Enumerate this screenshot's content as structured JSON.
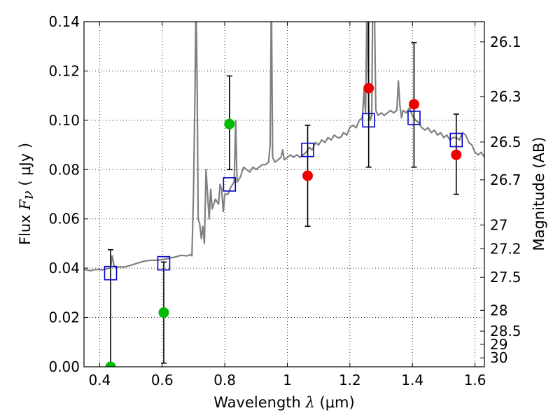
{
  "chart_data": {
    "type": "scatter",
    "xlabel": "Wavelength  λ (μm)",
    "xlabel_parts": {
      "text": "Wavelength  ",
      "symbol": "λ",
      "unit": " (μm)"
    },
    "ylabel": "Flux  Fν  ( μJy )",
    "ylabel_parts": {
      "text": "Flux  ",
      "symbol": "F",
      "sub": "ν",
      "unit": "  ( μJy )"
    },
    "y2label": "Magnitude (AB)",
    "xlim": [
      0.35,
      1.63
    ],
    "ylim": [
      0.0,
      0.14
    ],
    "grid": true,
    "x_ticks": [
      {
        "value": 0.4,
        "label": "0.4"
      },
      {
        "value": 0.6,
        "label": "0.6"
      },
      {
        "value": 0.8,
        "label": "0.8"
      },
      {
        "value": 1.0,
        "label": "1"
      },
      {
        "value": 1.2,
        "label": "1.2"
      },
      {
        "value": 1.4,
        "label": "1.4"
      },
      {
        "value": 1.6,
        "label": "1.6"
      }
    ],
    "y_ticks": [
      {
        "value": 0.0,
        "label": "0.00"
      },
      {
        "value": 0.02,
        "label": "0.02"
      },
      {
        "value": 0.04,
        "label": "0.04"
      },
      {
        "value": 0.06,
        "label": "0.06"
      },
      {
        "value": 0.08,
        "label": "0.08"
      },
      {
        "value": 0.1,
        "label": "0.10"
      },
      {
        "value": 0.12,
        "label": "0.12"
      },
      {
        "value": 0.14,
        "label": "0.14"
      }
    ],
    "y2_ticks": [
      {
        "mag": 26.1,
        "label": "26.1"
      },
      {
        "mag": 26.3,
        "label": "26.3"
      },
      {
        "mag": 26.5,
        "label": "26.5"
      },
      {
        "mag": 26.7,
        "label": "26.7"
      },
      {
        "mag": 27.0,
        "label": "27"
      },
      {
        "mag": 27.2,
        "label": "27.2"
      },
      {
        "mag": 27.5,
        "label": "27.5"
      },
      {
        "mag": 28.0,
        "label": "28"
      },
      {
        "mag": 28.5,
        "label": "28.5"
      },
      {
        "mag": 29.0,
        "label": "29"
      },
      {
        "mag": 30.0,
        "label": "30"
      }
    ],
    "spectrum": {
      "color": "#808080",
      "points": [
        [
          0.35,
          0.0395
        ],
        [
          0.37,
          0.039
        ],
        [
          0.39,
          0.0395
        ],
        [
          0.41,
          0.0393
        ],
        [
          0.425,
          0.0398
        ],
        [
          0.435,
          0.0402
        ],
        [
          0.44,
          0.045
        ],
        [
          0.443,
          0.043
        ],
        [
          0.447,
          0.0405
        ],
        [
          0.46,
          0.0405
        ],
        [
          0.48,
          0.0405
        ],
        [
          0.5,
          0.0412
        ],
        [
          0.52,
          0.042
        ],
        [
          0.54,
          0.0428
        ],
        [
          0.56,
          0.0432
        ],
        [
          0.58,
          0.0432
        ],
        [
          0.6,
          0.0435
        ],
        [
          0.62,
          0.044
        ],
        [
          0.64,
          0.0445
        ],
        [
          0.66,
          0.0452
        ],
        [
          0.68,
          0.045
        ],
        [
          0.69,
          0.0455
        ],
        [
          0.695,
          0.045
        ],
        [
          0.7,
          0.07
        ],
        [
          0.705,
          0.112
        ],
        [
          0.708,
          0.15
        ],
        [
          0.712,
          0.11
        ],
        [
          0.715,
          0.06
        ],
        [
          0.72,
          0.058
        ],
        [
          0.725,
          0.052
        ],
        [
          0.73,
          0.057
        ],
        [
          0.735,
          0.05
        ],
        [
          0.74,
          0.08
        ],
        [
          0.745,
          0.07
        ],
        [
          0.75,
          0.06
        ],
        [
          0.755,
          0.072
        ],
        [
          0.76,
          0.064
        ],
        [
          0.77,
          0.068
        ],
        [
          0.78,
          0.066
        ],
        [
          0.785,
          0.074
        ],
        [
          0.79,
          0.072
        ],
        [
          0.795,
          0.063
        ],
        [
          0.8,
          0.07
        ],
        [
          0.81,
          0.07
        ],
        [
          0.82,
          0.073
        ],
        [
          0.83,
          0.075
        ],
        [
          0.835,
          0.1
        ],
        [
          0.838,
          0.08
        ],
        [
          0.84,
          0.075
        ],
        [
          0.85,
          0.077
        ],
        [
          0.86,
          0.081
        ],
        [
          0.87,
          0.08
        ],
        [
          0.88,
          0.079
        ],
        [
          0.89,
          0.081
        ],
        [
          0.9,
          0.08
        ],
        [
          0.91,
          0.081
        ],
        [
          0.92,
          0.082
        ],
        [
          0.93,
          0.082
        ],
        [
          0.94,
          0.083
        ],
        [
          0.945,
          0.09
        ],
        [
          0.949,
          0.15
        ],
        [
          0.953,
          0.085
        ],
        [
          0.96,
          0.083
        ],
        [
          0.97,
          0.084
        ],
        [
          0.98,
          0.085
        ],
        [
          0.985,
          0.088
        ],
        [
          0.99,
          0.084
        ],
        [
          1.0,
          0.085
        ],
        [
          1.01,
          0.086
        ],
        [
          1.02,
          0.085
        ],
        [
          1.03,
          0.086
        ],
        [
          1.04,
          0.085
        ],
        [
          1.05,
          0.086
        ],
        [
          1.06,
          0.087
        ],
        [
          1.07,
          0.089
        ],
        [
          1.08,
          0.088
        ],
        [
          1.09,
          0.091
        ],
        [
          1.1,
          0.09
        ],
        [
          1.11,
          0.092
        ],
        [
          1.12,
          0.091
        ],
        [
          1.13,
          0.093
        ],
        [
          1.14,
          0.092
        ],
        [
          1.15,
          0.094
        ],
        [
          1.16,
          0.093
        ],
        [
          1.17,
          0.093
        ],
        [
          1.18,
          0.095
        ],
        [
          1.19,
          0.094
        ],
        [
          1.2,
          0.097
        ],
        [
          1.21,
          0.098
        ],
        [
          1.22,
          0.097
        ],
        [
          1.23,
          0.1
        ],
        [
          1.24,
          0.101
        ],
        [
          1.245,
          0.112
        ],
        [
          1.25,
          0.103
        ],
        [
          1.255,
          0.15
        ],
        [
          1.26,
          0.105
        ],
        [
          1.265,
          0.1
        ],
        [
          1.27,
          0.102
        ],
        [
          1.273,
          0.15
        ],
        [
          1.278,
          0.15
        ],
        [
          1.283,
          0.104
        ],
        [
          1.29,
          0.102
        ],
        [
          1.3,
          0.103
        ],
        [
          1.31,
          0.102
        ],
        [
          1.32,
          0.103
        ],
        [
          1.33,
          0.104
        ],
        [
          1.34,
          0.103
        ],
        [
          1.35,
          0.104
        ],
        [
          1.355,
          0.116
        ],
        [
          1.36,
          0.106
        ],
        [
          1.365,
          0.101
        ],
        [
          1.37,
          0.104
        ],
        [
          1.38,
          0.103
        ],
        [
          1.39,
          0.105
        ],
        [
          1.4,
          0.102
        ],
        [
          1.41,
          0.1
        ],
        [
          1.42,
          0.099
        ],
        [
          1.43,
          0.097
        ],
        [
          1.44,
          0.096
        ],
        [
          1.45,
          0.097
        ],
        [
          1.46,
          0.095
        ],
        [
          1.47,
          0.096
        ],
        [
          1.48,
          0.094
        ],
        [
          1.49,
          0.095
        ],
        [
          1.5,
          0.093
        ],
        [
          1.51,
          0.094
        ],
        [
          1.52,
          0.092
        ],
        [
          1.53,
          0.093
        ],
        [
          1.54,
          0.093
        ],
        [
          1.55,
          0.092
        ],
        [
          1.56,
          0.095
        ],
        [
          1.57,
          0.094
        ],
        [
          1.58,
          0.091
        ],
        [
          1.59,
          0.09
        ],
        [
          1.6,
          0.087
        ],
        [
          1.61,
          0.086
        ],
        [
          1.62,
          0.087
        ],
        [
          1.63,
          0.085
        ]
      ]
    },
    "model_boxes": {
      "color": "#0000cc",
      "points": [
        {
          "x": 0.435,
          "y": 0.038
        },
        {
          "x": 0.605,
          "y": 0.042
        },
        {
          "x": 0.815,
          "y": 0.074
        },
        {
          "x": 1.065,
          "y": 0.088
        },
        {
          "x": 1.26,
          "y": 0.1
        },
        {
          "x": 1.405,
          "y": 0.101
        },
        {
          "x": 1.54,
          "y": 0.092
        }
      ]
    },
    "observed_green": {
      "color": "#00bb00",
      "points": [
        {
          "x": 0.435,
          "y": 0.0,
          "ylo": 0.0,
          "yhi": 0.0475
        },
        {
          "x": 0.605,
          "y": 0.022,
          "ylo": 0.0015,
          "yhi": 0.0425
        },
        {
          "x": 0.815,
          "y": 0.0985,
          "ylo": 0.08,
          "yhi": 0.118
        }
      ]
    },
    "observed_red": {
      "color": "#ee0000",
      "points": [
        {
          "x": 1.065,
          "y": 0.0775,
          "ylo": 0.057,
          "yhi": 0.098
        },
        {
          "x": 1.26,
          "y": 0.113,
          "ylo": 0.081,
          "yhi": 0.15
        },
        {
          "x": 1.405,
          "y": 0.1065,
          "ylo": 0.081,
          "yhi": 0.1315
        },
        {
          "x": 1.54,
          "y": 0.086,
          "ylo": 0.07,
          "yhi": 0.1025
        }
      ]
    }
  }
}
